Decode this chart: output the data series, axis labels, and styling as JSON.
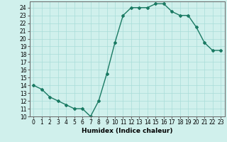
{
  "x": [
    0,
    1,
    2,
    3,
    4,
    5,
    6,
    7,
    8,
    9,
    10,
    11,
    12,
    13,
    14,
    15,
    16,
    17,
    18,
    19,
    20,
    21,
    22,
    23
  ],
  "y": [
    14,
    13.5,
    12.5,
    12,
    11.5,
    11,
    11,
    10,
    12,
    15.5,
    19.5,
    23,
    24,
    24,
    24,
    24.5,
    24.5,
    23.5,
    23,
    23,
    21.5,
    19.5,
    18.5,
    18.5
  ],
  "line_color": "#1a7a63",
  "bg_color": "#d0f0ec",
  "grid_color": "#a8ddd8",
  "xlabel": "Humidex (Indice chaleur)",
  "xlim": [
    -0.5,
    23.5
  ],
  "ylim": [
    10,
    24.8
  ],
  "yticks": [
    10,
    11,
    12,
    13,
    14,
    15,
    16,
    17,
    18,
    19,
    20,
    21,
    22,
    23,
    24
  ],
  "xticks": [
    0,
    1,
    2,
    3,
    4,
    5,
    6,
    7,
    8,
    9,
    10,
    11,
    12,
    13,
    14,
    15,
    16,
    17,
    18,
    19,
    20,
    21,
    22,
    23
  ],
  "marker": "D",
  "marker_size": 2.0,
  "line_width": 1.0,
  "font_size": 5.5,
  "xlabel_fontsize": 6.5
}
